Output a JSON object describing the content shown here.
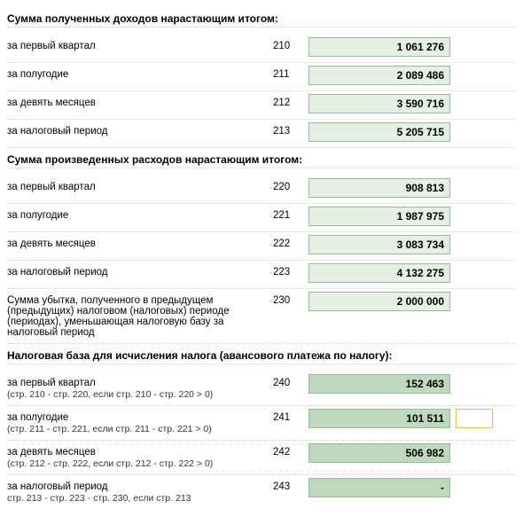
{
  "sections": {
    "income": {
      "title": "Сумма полученных доходов нарастающим итогом:",
      "rows": [
        {
          "label": "за первый квартал",
          "code": "210",
          "value": "1 061 276"
        },
        {
          "label": "за полугодие",
          "code": "211",
          "value": "2 089 486"
        },
        {
          "label": "за девять месяцев",
          "code": "212",
          "value": "3 590 716"
        },
        {
          "label": "за налоговый период",
          "code": "213",
          "value": "5 205 715"
        }
      ]
    },
    "expense": {
      "title": "Сумма произведенных расходов нарастающим итогом:",
      "rows": [
        {
          "label": "за первый квартал",
          "code": "220",
          "value": "908 813"
        },
        {
          "label": "за полугодие",
          "code": "221",
          "value": "1 987 975"
        },
        {
          "label": "за девять месяцев",
          "code": "222",
          "value": "3 083 734"
        },
        {
          "label": "за налоговый период",
          "code": "223",
          "value": "4 132 275"
        }
      ]
    },
    "loss": {
      "label": "Сумма убытка, полученного в предыдущем (предыдущих) налоговом (налоговых) периоде (периодах), уменьшающая налоговую базу за налоговый период",
      "code": "230",
      "value": "2 000 000"
    },
    "taxbase": {
      "title": "Налоговая база для исчисления налога (авансового платежа по налогу):",
      "rows": [
        {
          "label": "за первый квартал",
          "sub": "(стр. 210 - стр. 220, если стр. 210 - стр. 220 > 0)",
          "code": "240",
          "value": "152 463",
          "hl": true
        },
        {
          "label": "за полугодие",
          "sub": "(стр. 211 - стр. 221, если стр. 211 - стр. 221 > 0)",
          "code": "241",
          "value": "101 511",
          "hl": true,
          "extra": true
        },
        {
          "label": "за девять месяцев",
          "sub": "(стр. 212 - стр. 222, если стр. 212 - стр. 222 > 0)",
          "code": "242",
          "value": "506 982",
          "hl": true
        },
        {
          "label": "за налоговый период",
          "sub": "стр. 213 - стр. 223 - стр. 230, если стр. 213",
          "code": "243",
          "value": "-",
          "hl": true
        }
      ]
    }
  },
  "colors": {
    "field_bg": "#e4f0e4",
    "field_hl_bg": "#bfd9bf",
    "field_border": "#9bb89b",
    "extra_border": "#d4c26a"
  }
}
